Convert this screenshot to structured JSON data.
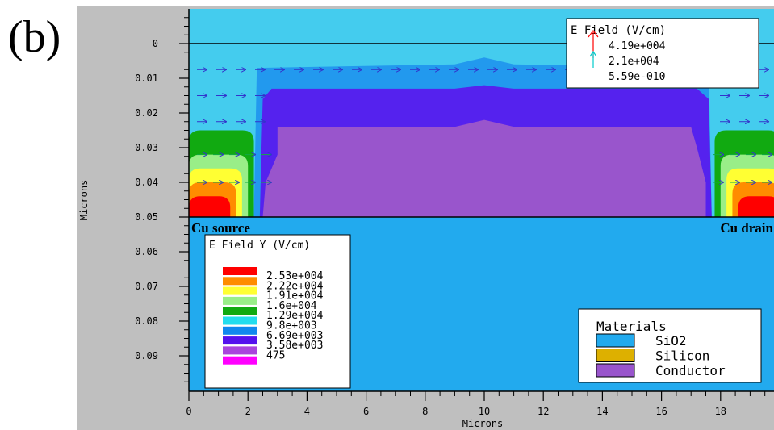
{
  "panel_label": "(b)",
  "chart_data": {
    "type": "heatmap",
    "xlabel": "Microns",
    "ylabel": "Microns",
    "xlim": [
      0,
      20
    ],
    "ylim": [
      0,
      0.1
    ],
    "y_inverted": true,
    "x_ticks": [
      0,
      2,
      4,
      6,
      8,
      10,
      12,
      14,
      16,
      18
    ],
    "x_tick_labels": [
      "0",
      "2",
      "4",
      "6",
      "8",
      "10",
      "12",
      "14",
      "16",
      "18"
    ],
    "y_ticks": [
      0,
      0.01,
      0.02,
      0.03,
      0.04,
      0.05,
      0.06,
      0.07,
      0.08,
      0.09
    ],
    "y_tick_labels": [
      "0",
      "0.01",
      "0.02",
      "0.03",
      "0.04",
      "0.05",
      "0.06",
      "0.07",
      "0.08",
      "0.09"
    ],
    "annotations": [
      "Cu source",
      "Cu drain"
    ],
    "vector_legend": {
      "title": "E Field (V/cm)",
      "entries": [
        {
          "label": "4.19e+004",
          "color": "#ff0000"
        },
        {
          "label": "2.1e+004",
          "color": "#00cccc"
        },
        {
          "label": "5.59e-010",
          "color": "#3333cc"
        }
      ]
    },
    "contour_legend": {
      "title": "E Field Y (V/cm)",
      "levels": [
        {
          "label": "2.53e+004",
          "value": 25300,
          "color": "#ff0000"
        },
        {
          "label": "2.22e+004",
          "value": 22200,
          "color": "#ff8c00"
        },
        {
          "label": "1.91e+004",
          "value": 19100,
          "color": "#ffff33"
        },
        {
          "label": "1.6e+004",
          "value": 16000,
          "color": "#99ee88"
        },
        {
          "label": "1.29e+004",
          "value": 12900,
          "color": "#11aa11"
        },
        {
          "label": "9.8e+003",
          "value": 9800,
          "color": "#22ddee"
        },
        {
          "label": "6.69e+003",
          "value": 6690,
          "color": "#1188ee"
        },
        {
          "label": "3.58e+003",
          "value": 3580,
          "color": "#5511ee"
        },
        {
          "label": "475",
          "value": 475,
          "color": "#aa44dd"
        },
        {
          "label": "",
          "value": null,
          "color": "#ff00ff"
        }
      ]
    },
    "materials_legend": {
      "title": "Materials",
      "entries": [
        {
          "label": "SiO2",
          "color": "#22aaee"
        },
        {
          "label": "Silicon",
          "color": "#ddb000"
        },
        {
          "label": "Conductor",
          "color": "#9955cc"
        }
      ]
    },
    "fields": {
      "background": "#22aaee",
      "upper_band": "#44ccee",
      "mid_band": "#2299ee",
      "inner_shell": "#5522ee",
      "conductor": "#9955cc",
      "side_stack": [
        "#11aa11",
        "#99ee88",
        "#ffff33",
        "#ff8c00",
        "#ff0000"
      ],
      "side_contours": [
        {
          "x": [
            0,
            2.2
          ],
          "y": [
            0.025,
            0.05
          ],
          "color": "#11aa11"
        },
        {
          "x": [
            0,
            2.0
          ],
          "y": [
            0.032,
            0.05
          ],
          "color": "#99ee88"
        },
        {
          "x": [
            0,
            1.8
          ],
          "y": [
            0.036,
            0.05
          ],
          "color": "#ffff33"
        },
        {
          "x": [
            0,
            1.6
          ],
          "y": [
            0.04,
            0.05
          ],
          "color": "#ff8c00"
        },
        {
          "x": [
            0,
            1.4
          ],
          "y": [
            0.044,
            0.05
          ],
          "color": "#ff0000"
        }
      ],
      "vector_rows_y": [
        0.0075,
        0.015,
        0.0225,
        0.032,
        0.04
      ]
    }
  }
}
